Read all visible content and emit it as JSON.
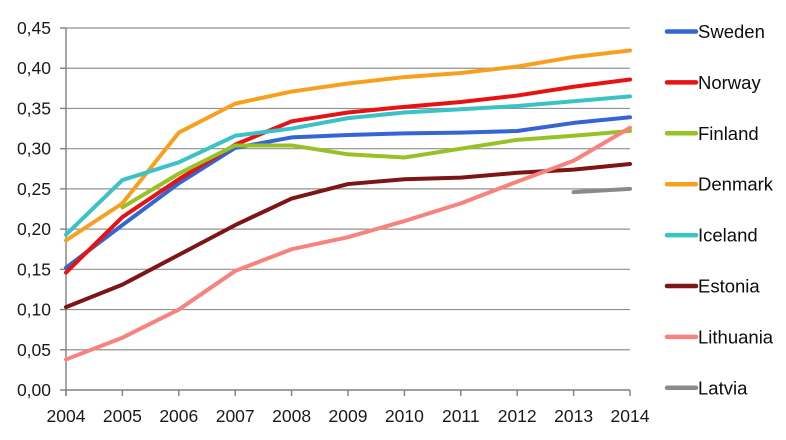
{
  "chart_data": {
    "type": "line",
    "title": "",
    "xlabel": "",
    "ylabel": "",
    "x": [
      2004,
      2005,
      2006,
      2007,
      2008,
      2009,
      2010,
      2011,
      2012,
      2013,
      2014
    ],
    "x_tick_labels": [
      "2004",
      "2005",
      "2006",
      "2007",
      "2008",
      "2009",
      "2010",
      "2011",
      "2012",
      "2013",
      "2014"
    ],
    "y_tick_labels": [
      "0,00",
      "0,05",
      "0,10",
      "0,15",
      "0,20",
      "0,25",
      "0,30",
      "0,35",
      "0,40",
      "0,45"
    ],
    "y_tick_values": [
      0.0,
      0.05,
      0.1,
      0.15,
      0.2,
      0.25,
      0.3,
      0.35,
      0.4,
      0.45
    ],
    "ylim": [
      0,
      0.45
    ],
    "decimal_separator": ",",
    "grid": true,
    "legend_position": "right",
    "series": [
      {
        "name": "Sweden",
        "color": "#3465D3",
        "values": [
          0.152,
          0.205,
          0.257,
          0.301,
          0.314,
          0.317,
          0.319,
          0.32,
          0.322,
          0.332,
          0.339
        ]
      },
      {
        "name": "Norway",
        "color": "#E81212",
        "values": [
          0.146,
          0.215,
          0.262,
          0.305,
          0.334,
          0.345,
          0.352,
          0.358,
          0.366,
          0.377,
          0.386
        ]
      },
      {
        "name": "Finland",
        "color": "#97C225",
        "values": [
          null,
          0.227,
          0.269,
          0.304,
          0.304,
          0.293,
          0.289,
          0.3,
          0.311,
          0.316,
          0.322
        ]
      },
      {
        "name": "Denmark",
        "color": "#F8A01E",
        "values": [
          0.186,
          0.232,
          0.32,
          0.356,
          0.371,
          0.381,
          0.389,
          0.394,
          0.402,
          0.414,
          0.422
        ]
      },
      {
        "name": "Iceland",
        "color": "#3BC2C6",
        "values": [
          0.193,
          0.261,
          0.283,
          0.316,
          0.325,
          0.338,
          0.345,
          0.349,
          0.353,
          0.359,
          0.365
        ]
      },
      {
        "name": "Estonia",
        "color": "#7D1517",
        "values": [
          0.103,
          0.131,
          0.168,
          0.205,
          0.238,
          0.256,
          0.262,
          0.264,
          0.27,
          0.274,
          0.281
        ]
      },
      {
        "name": "Lithuania",
        "color": "#F8837E",
        "values": [
          0.038,
          0.065,
          0.1,
          0.148,
          0.175,
          0.19,
          0.21,
          0.232,
          0.259,
          0.285,
          0.326
        ]
      },
      {
        "name": "Latvia",
        "color": "#8A8A8A",
        "values": [
          null,
          null,
          null,
          null,
          null,
          null,
          null,
          null,
          null,
          0.246,
          0.25
        ]
      }
    ],
    "colors": {
      "gridline": "#909090",
      "axis": "#808080",
      "tick": "#808080",
      "text": "#1a1a1a",
      "background": "#ffffff"
    }
  }
}
